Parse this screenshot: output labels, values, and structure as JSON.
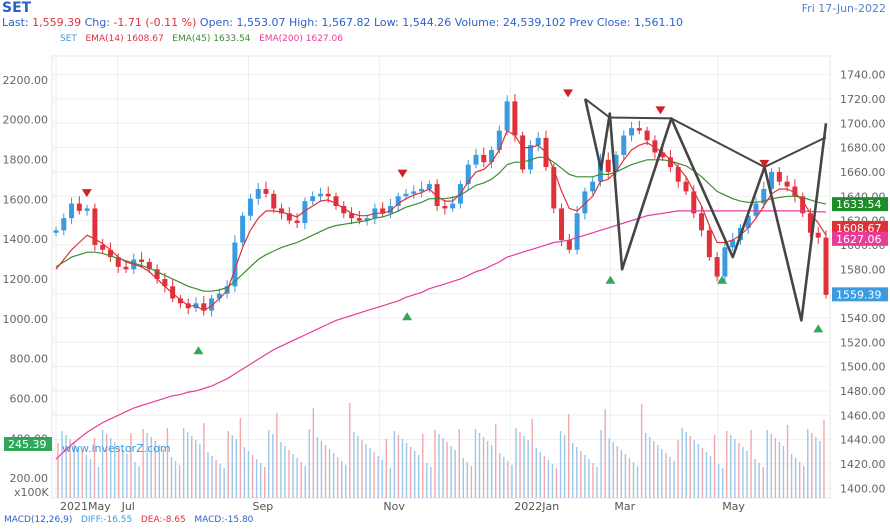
{
  "header": {
    "symbol": "SET",
    "date": "Fri 17-Jun-2022",
    "last_label": "Last:",
    "last_value": "1,559.39",
    "chg_label": "Chg:",
    "chg_value": "-1.71 (-0.11 %)",
    "open_label": "Open:",
    "open_value": "1,553.07",
    "high_label": "High:",
    "high_value": "1,567.82",
    "low_label": "Low:",
    "low_value": "1,544.26",
    "volume_label": "Volume:",
    "volume_value": "24,539,102",
    "prev_label": "Prev Close:",
    "prev_value": "1,561.10"
  },
  "legend": {
    "set": "SET",
    "ema14": "EMA(14)",
    "ema14_value": "1608.67",
    "ema45": "EMA(45)",
    "ema45_value": "1633.54",
    "ema200": "EMA(200)",
    "ema200_value": "1627.06"
  },
  "macd": {
    "label": "MACD(12,26,9)",
    "diff": "DIFF:-16.55",
    "dea": "DEA:-8.65",
    "macd": "MACD:-15.80"
  },
  "watermark": "www.investorZ.com",
  "colors": {
    "up": "#3a9be0",
    "down": "#e0303a",
    "ema14": "#e0303a",
    "ema45": "#3c8c34",
    "ema200": "#e83c9a",
    "pattern": "#454545",
    "triangle_up": "#2fa85a",
    "triangle_down": "#d0202a"
  },
  "chart_data": {
    "type": "line",
    "title": "SET",
    "x_labels": [
      "2021May",
      "Jul",
      "Sep",
      "Nov",
      "2022Jan",
      "Mar",
      "May"
    ],
    "left_axis": {
      "ticks": [
        "2200.00",
        "2000.00",
        "1800.00",
        "1600.00",
        "1400.00",
        "1200.00",
        "1000.00",
        "800.00",
        "600.00",
        "400.00",
        "200.00"
      ],
      "ylim": [
        100,
        2300
      ]
    },
    "right_axis": {
      "ticks": [
        "1740.00",
        "1720.00",
        "1700.00",
        "1680.00",
        "1660.00",
        "1640.00",
        "1620.00",
        "1600.00",
        "1580.00",
        "1560.00",
        "1540.00",
        "1520.00",
        "1500.00",
        "1480.00",
        "1460.00",
        "1440.00",
        "1420.00",
        "1400.00"
      ],
      "ylim": [
        1392,
        1752
      ]
    },
    "volume_axis_label": "x100K",
    "volume_last": "245.39",
    "right_badges": [
      {
        "name": "EMA(45)",
        "value": "1633.54",
        "color": "#1f8c2a"
      },
      {
        "name": "EMA(14)",
        "value": "1608.67",
        "color": "#e0303a"
      },
      {
        "name": "EMA(200)",
        "value": "1627.06",
        "color": "#e83c9a"
      },
      {
        "name": "Last",
        "value": "1559.39",
        "color": "#3a9be0"
      }
    ],
    "price_close": [
      1612,
      1622,
      1634,
      1628,
      1630,
      1600,
      1596,
      1590,
      1582,
      1580,
      1588,
      1586,
      1580,
      1572,
      1566,
      1556,
      1552,
      1548,
      1552,
      1546,
      1556,
      1560,
      1566,
      1602,
      1624,
      1638,
      1646,
      1642,
      1630,
      1626,
      1620,
      1618,
      1636,
      1640,
      1642,
      1640,
      1632,
      1626,
      1622,
      1620,
      1622,
      1630,
      1626,
      1632,
      1640,
      1642,
      1644,
      1646,
      1650,
      1632,
      1630,
      1634,
      1650,
      1666,
      1674,
      1668,
      1678,
      1694,
      1718,
      1690,
      1662,
      1682,
      1688,
      1664,
      1630,
      1604,
      1596,
      1626,
      1644,
      1652,
      1670,
      1660,
      1674,
      1690,
      1696,
      1694,
      1686,
      1676,
      1672,
      1664,
      1652,
      1644,
      1626,
      1612,
      1590,
      1574,
      1598,
      1604,
      1614,
      1624,
      1634,
      1646,
      1660,
      1652,
      1648,
      1640,
      1626,
      1610,
      1606,
      1559
    ],
    "ema14": [
      1580,
      1588,
      1596,
      1602,
      1608,
      1605,
      1601,
      1596,
      1590,
      1586,
      1584,
      1582,
      1578,
      1572,
      1566,
      1560,
      1555,
      1550,
      1550,
      1546,
      1550,
      1556,
      1562,
      1580,
      1598,
      1612,
      1622,
      1628,
      1628,
      1627,
      1625,
      1623,
      1628,
      1632,
      1636,
      1637,
      1634,
      1630,
      1626,
      1624,
      1624,
      1626,
      1626,
      1628,
      1634,
      1638,
      1641,
      1643,
      1646,
      1640,
      1636,
      1636,
      1642,
      1652,
      1660,
      1662,
      1668,
      1678,
      1694,
      1690,
      1680,
      1680,
      1682,
      1676,
      1662,
      1644,
      1630,
      1628,
      1634,
      1640,
      1652,
      1654,
      1660,
      1670,
      1678,
      1682,
      1684,
      1680,
      1676,
      1670,
      1664,
      1656,
      1644,
      1632,
      1616,
      1602,
      1602,
      1604,
      1608,
      1614,
      1622,
      1632,
      1642,
      1646,
      1646,
      1643,
      1636,
      1626,
      1618,
      1608
    ],
    "ema45": [
      1582,
      1586,
      1590,
      1592,
      1594,
      1594,
      1593,
      1591,
      1589,
      1587,
      1585,
      1583,
      1581,
      1578,
      1575,
      1572,
      1569,
      1566,
      1564,
      1562,
      1562,
      1563,
      1565,
      1570,
      1576,
      1582,
      1588,
      1592,
      1595,
      1598,
      1600,
      1602,
      1605,
      1608,
      1611,
      1614,
      1616,
      1617,
      1618,
      1619,
      1620,
      1622,
      1623,
      1625,
      1628,
      1631,
      1633,
      1635,
      1638,
      1638,
      1638,
      1639,
      1641,
      1645,
      1649,
      1651,
      1654,
      1659,
      1666,
      1668,
      1668,
      1670,
      1672,
      1672,
      1668,
      1663,
      1658,
      1656,
      1656,
      1656,
      1658,
      1658,
      1660,
      1663,
      1666,
      1668,
      1670,
      1670,
      1670,
      1669,
      1667,
      1665,
      1661,
      1656,
      1650,
      1644,
      1641,
      1638,
      1636,
      1635,
      1635,
      1636,
      1638,
      1639,
      1640,
      1640,
      1639,
      1637,
      1635,
      1633.54
    ],
    "ema200": [
      1424,
      1430,
      1436,
      1441,
      1446,
      1450,
      1454,
      1457,
      1460,
      1463,
      1466,
      1468,
      1470,
      1472,
      1474,
      1476,
      1477,
      1479,
      1480,
      1482,
      1484,
      1487,
      1490,
      1494,
      1498,
      1502,
      1506,
      1510,
      1514,
      1517,
      1520,
      1523,
      1526,
      1529,
      1532,
      1535,
      1538,
      1540,
      1542,
      1544,
      1546,
      1548,
      1550,
      1552,
      1554,
      1557,
      1559,
      1561,
      1564,
      1566,
      1568,
      1570,
      1572,
      1575,
      1578,
      1580,
      1583,
      1586,
      1590,
      1592,
      1594,
      1596,
      1598,
      1600,
      1602,
      1603,
      1604,
      1606,
      1608,
      1610,
      1612,
      1614,
      1616,
      1618,
      1620,
      1622,
      1624,
      1625,
      1626,
      1627,
      1628,
      1628,
      1628,
      1628,
      1628,
      1628,
      1628,
      1628,
      1628,
      1628,
      1628,
      1628,
      1628,
      1628,
      1628,
      1628,
      1628,
      1627.5,
      1627.2,
      1627.06
    ],
    "pattern_pivots": [
      1720,
      1662,
      1708,
      1580,
      1704,
      1590,
      1664,
      1538,
      1700
    ],
    "pattern_pivot_dates": [
      "2022-02-14",
      "2022-02-23",
      "2022-02-28",
      "2022-03-07",
      "2022-04-04",
      "2022-05-09",
      "2022-05-27",
      "2022-06-17",
      "2022-07-01"
    ],
    "peaks": [
      1636,
      1652,
      1718,
      1704,
      1660
    ],
    "troughs": [
      1520,
      1548,
      1578,
      1578,
      1538
    ]
  }
}
